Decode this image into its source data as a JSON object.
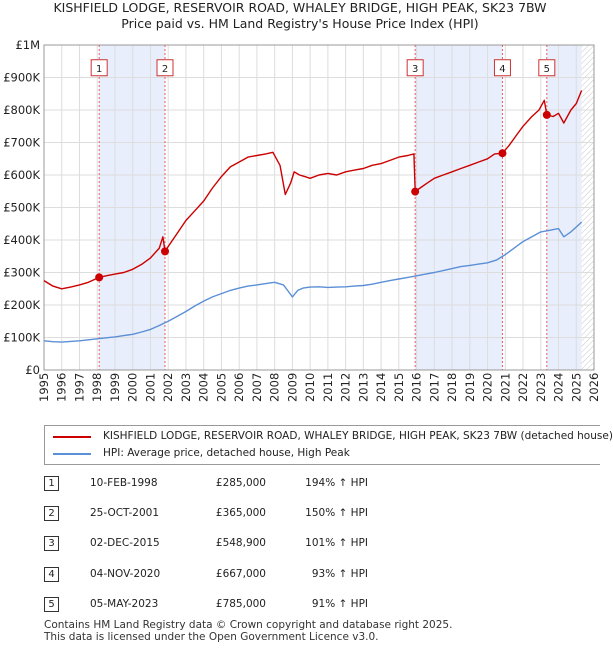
{
  "title_line1": "KISHFIELD LODGE, RESERVOIR ROAD, WHALEY BRIDGE, HIGH PEAK, SK23 7BW",
  "title_line2": "Price paid vs. HM Land Registry's House Price Index (HPI)",
  "colors": {
    "property": "#cc0000",
    "hpi": "#5b8fd6",
    "shade": "#e8eefb",
    "grid": "#dddddd"
  },
  "chart_data": {
    "type": "line",
    "xlim": [
      1995,
      2026
    ],
    "ylim": [
      0,
      1000000
    ],
    "x_ticks": [
      "1995",
      "1996",
      "1997",
      "1998",
      "1999",
      "2000",
      "2001",
      "2002",
      "2003",
      "2004",
      "2005",
      "2006",
      "2007",
      "2008",
      "2009",
      "2010",
      "2011",
      "2012",
      "2013",
      "2014",
      "2015",
      "2016",
      "2017",
      "2018",
      "2019",
      "2020",
      "2021",
      "2022",
      "2023",
      "2024",
      "2025",
      "2026"
    ],
    "y_ticks": [
      {
        "value": 0,
        "label": "£0"
      },
      {
        "value": 100000,
        "label": "£100K"
      },
      {
        "value": 200000,
        "label": "£200K"
      },
      {
        "value": 300000,
        "label": "£300K"
      },
      {
        "value": 400000,
        "label": "£400K"
      },
      {
        "value": 500000,
        "label": "£500K"
      },
      {
        "value": 600000,
        "label": "£600K"
      },
      {
        "value": 700000,
        "label": "£700K"
      },
      {
        "value": 800000,
        "label": "£800K"
      },
      {
        "value": 900000,
        "label": "£900K"
      },
      {
        "value": 1000000,
        "label": "£1M"
      }
    ],
    "shaded_ranges": [
      [
        1998.11,
        2001.82
      ],
      [
        2015.92,
        2020.84
      ],
      [
        2023.34,
        2025.3
      ]
    ],
    "series": [
      {
        "name": "KISHFIELD LODGE, RESERVOIR ROAD, WHALEY BRIDGE, HIGH PEAK, SK23 7BW (detached house)",
        "x": [
          1995.0,
          1995.5,
          1996.0,
          1996.5,
          1997.0,
          1997.5,
          1998.11,
          1998.5,
          1999.0,
          1999.5,
          2000.0,
          2000.5,
          2001.0,
          2001.5,
          2001.7,
          2001.82,
          2002.0,
          2002.5,
          2003.0,
          2003.5,
          2004.0,
          2004.5,
          2005.0,
          2005.5,
          2006.0,
          2006.5,
          2007.0,
          2007.5,
          2007.9,
          2008.3,
          2008.6,
          2008.9,
          2009.1,
          2009.4,
          2009.7,
          2010.0,
          2010.5,
          2011.0,
          2011.5,
          2012.0,
          2012.5,
          2013.0,
          2013.5,
          2014.0,
          2014.5,
          2015.0,
          2015.5,
          2015.85,
          2015.92,
          2016.2,
          2016.6,
          2017.0,
          2017.5,
          2018.0,
          2018.5,
          2019.0,
          2019.5,
          2020.0,
          2020.4,
          2020.84,
          2021.2,
          2021.6,
          2022.0,
          2022.5,
          2022.9,
          2023.2,
          2023.34,
          2023.7,
          2024.0,
          2024.3,
          2024.7,
          2025.0,
          2025.3
        ],
        "y": [
          275000,
          258000,
          250000,
          255000,
          262000,
          270000,
          285000,
          290000,
          295000,
          300000,
          310000,
          325000,
          345000,
          375000,
          410000,
          365000,
          380000,
          420000,
          460000,
          490000,
          520000,
          560000,
          595000,
          625000,
          640000,
          655000,
          660000,
          665000,
          670000,
          630000,
          540000,
          575000,
          610000,
          600000,
          595000,
          590000,
          600000,
          605000,
          600000,
          610000,
          615000,
          620000,
          630000,
          635000,
          645000,
          655000,
          660000,
          665000,
          548900,
          560000,
          575000,
          590000,
          600000,
          610000,
          620000,
          630000,
          640000,
          650000,
          665000,
          667000,
          690000,
          720000,
          750000,
          780000,
          800000,
          830000,
          785000,
          780000,
          790000,
          760000,
          800000,
          820000,
          860000
        ]
      },
      {
        "name": "HPI: Average price, detached house, High Peak",
        "x": [
          1995.0,
          1995.5,
          1996.0,
          1996.5,
          1997.0,
          1997.5,
          1998.0,
          1998.5,
          1999.0,
          1999.5,
          2000.0,
          2000.5,
          2001.0,
          2001.5,
          2002.0,
          2002.5,
          2003.0,
          2003.5,
          2004.0,
          2004.5,
          2005.0,
          2005.5,
          2006.0,
          2006.5,
          2007.0,
          2007.5,
          2008.0,
          2008.5,
          2008.8,
          2009.0,
          2009.3,
          2009.6,
          2010.0,
          2010.5,
          2011.0,
          2011.5,
          2012.0,
          2012.5,
          2013.0,
          2013.5,
          2014.0,
          2014.5,
          2015.0,
          2015.5,
          2016.0,
          2016.5,
          2017.0,
          2017.5,
          2018.0,
          2018.5,
          2019.0,
          2019.5,
          2020.0,
          2020.5,
          2021.0,
          2021.5,
          2022.0,
          2022.5,
          2023.0,
          2023.5,
          2024.0,
          2024.3,
          2024.7,
          2025.0,
          2025.3
        ],
        "y": [
          90000,
          87000,
          86000,
          88000,
          90000,
          93000,
          96000,
          99000,
          102000,
          106000,
          110000,
          117000,
          125000,
          137000,
          150000,
          165000,
          180000,
          197000,
          212000,
          225000,
          235000,
          245000,
          252000,
          258000,
          262000,
          266000,
          270000,
          262000,
          240000,
          225000,
          245000,
          252000,
          255000,
          256000,
          254000,
          255000,
          256000,
          258000,
          260000,
          264000,
          270000,
          275000,
          280000,
          285000,
          290000,
          295000,
          300000,
          306000,
          312000,
          318000,
          322000,
          326000,
          330000,
          338000,
          355000,
          375000,
          395000,
          410000,
          425000,
          430000,
          435000,
          410000,
          425000,
          440000,
          455000
        ]
      }
    ],
    "sales": [
      {
        "num": "1",
        "x": 1998.11,
        "y": 285000
      },
      {
        "num": "2",
        "x": 2001.82,
        "y": 365000
      },
      {
        "num": "3",
        "x": 2015.92,
        "y": 548900
      },
      {
        "num": "4",
        "x": 2020.84,
        "y": 667000
      },
      {
        "num": "5",
        "x": 2023.34,
        "y": 785000
      }
    ]
  },
  "legend": {
    "property_label": "KISHFIELD LODGE, RESERVOIR ROAD, WHALEY BRIDGE, HIGH PEAK, SK23 7BW (detached house)",
    "hpi_label": "HPI: Average price, detached house, High Peak"
  },
  "transactions": [
    {
      "num": "1",
      "date": "10-FEB-1998",
      "price": "£285,000",
      "hpi": "194% ↑ HPI"
    },
    {
      "num": "2",
      "date": "25-OCT-2001",
      "price": "£365,000",
      "hpi": "150% ↑ HPI"
    },
    {
      "num": "3",
      "date": "02-DEC-2015",
      "price": "£548,900",
      "hpi": "101% ↑ HPI"
    },
    {
      "num": "4",
      "date": "04-NOV-2020",
      "price": "£667,000",
      "hpi": "93% ↑ HPI"
    },
    {
      "num": "5",
      "date": "05-MAY-2023",
      "price": "£785,000",
      "hpi": "91% ↑ HPI"
    }
  ],
  "footer": {
    "line1": "Contains HM Land Registry data © Crown copyright and database right 2025.",
    "line2": "This data is licensed under the Open Government Licence v3.0."
  }
}
